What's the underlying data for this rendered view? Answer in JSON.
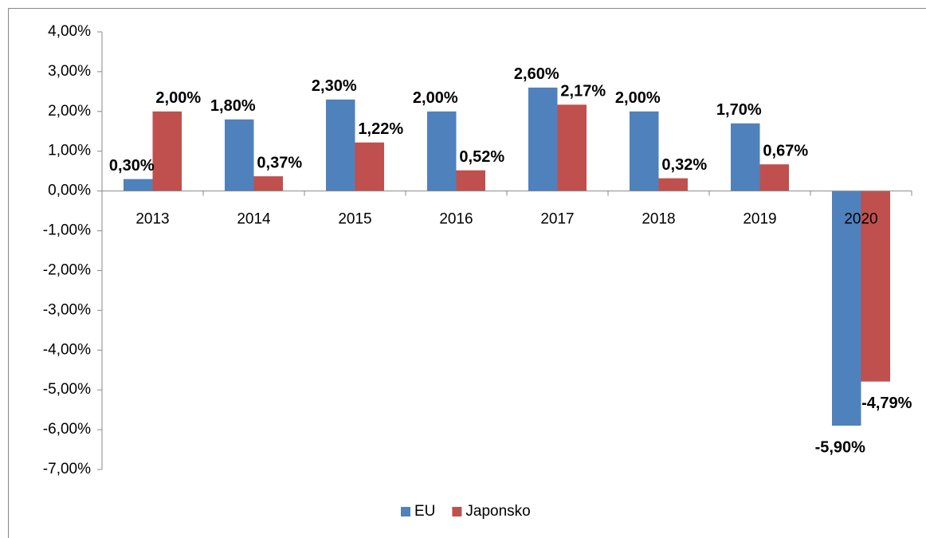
{
  "chart_data": {
    "type": "bar",
    "categories": [
      "2013",
      "2014",
      "2015",
      "2016",
      "2017",
      "2018",
      "2019",
      "2020"
    ],
    "series": [
      {
        "name": "EU",
        "color": "#4f81bd",
        "values": [
          0.3,
          1.8,
          2.3,
          2.0,
          2.6,
          2.0,
          1.7,
          -5.9
        ],
        "value_labels": [
          "0,30%",
          "1,80%",
          "2,30%",
          "2,00%",
          "2,60%",
          "2,00%",
          "1,70%",
          "-5,90%"
        ]
      },
      {
        "name": "Japonsko",
        "color": "#c0504d",
        "values": [
          2.0,
          0.37,
          1.22,
          0.52,
          2.17,
          0.32,
          0.67,
          -4.79
        ],
        "value_labels": [
          "2,00%",
          "0,37%",
          "1,22%",
          "0,52%",
          "2,17%",
          "0,32%",
          "0,67%",
          "-4,79%"
        ]
      }
    ],
    "ylim": [
      -7,
      4
    ],
    "yticks": [
      {
        "value": 4,
        "label": "4,00%"
      },
      {
        "value": 3,
        "label": "3,00%"
      },
      {
        "value": 2,
        "label": "2,00%"
      },
      {
        "value": 1,
        "label": "1,00%"
      },
      {
        "value": 0,
        "label": "0,00%"
      },
      {
        "value": -1,
        "label": "-1,00%"
      },
      {
        "value": -2,
        "label": "-2,00%"
      },
      {
        "value": -3,
        "label": "-3,00%"
      },
      {
        "value": -4,
        "label": "-4,00%"
      },
      {
        "value": -5,
        "label": "-5,00%"
      },
      {
        "value": -6,
        "label": "-6,00%"
      },
      {
        "value": -7,
        "label": "-7,00%"
      }
    ],
    "legend": "bottom"
  }
}
